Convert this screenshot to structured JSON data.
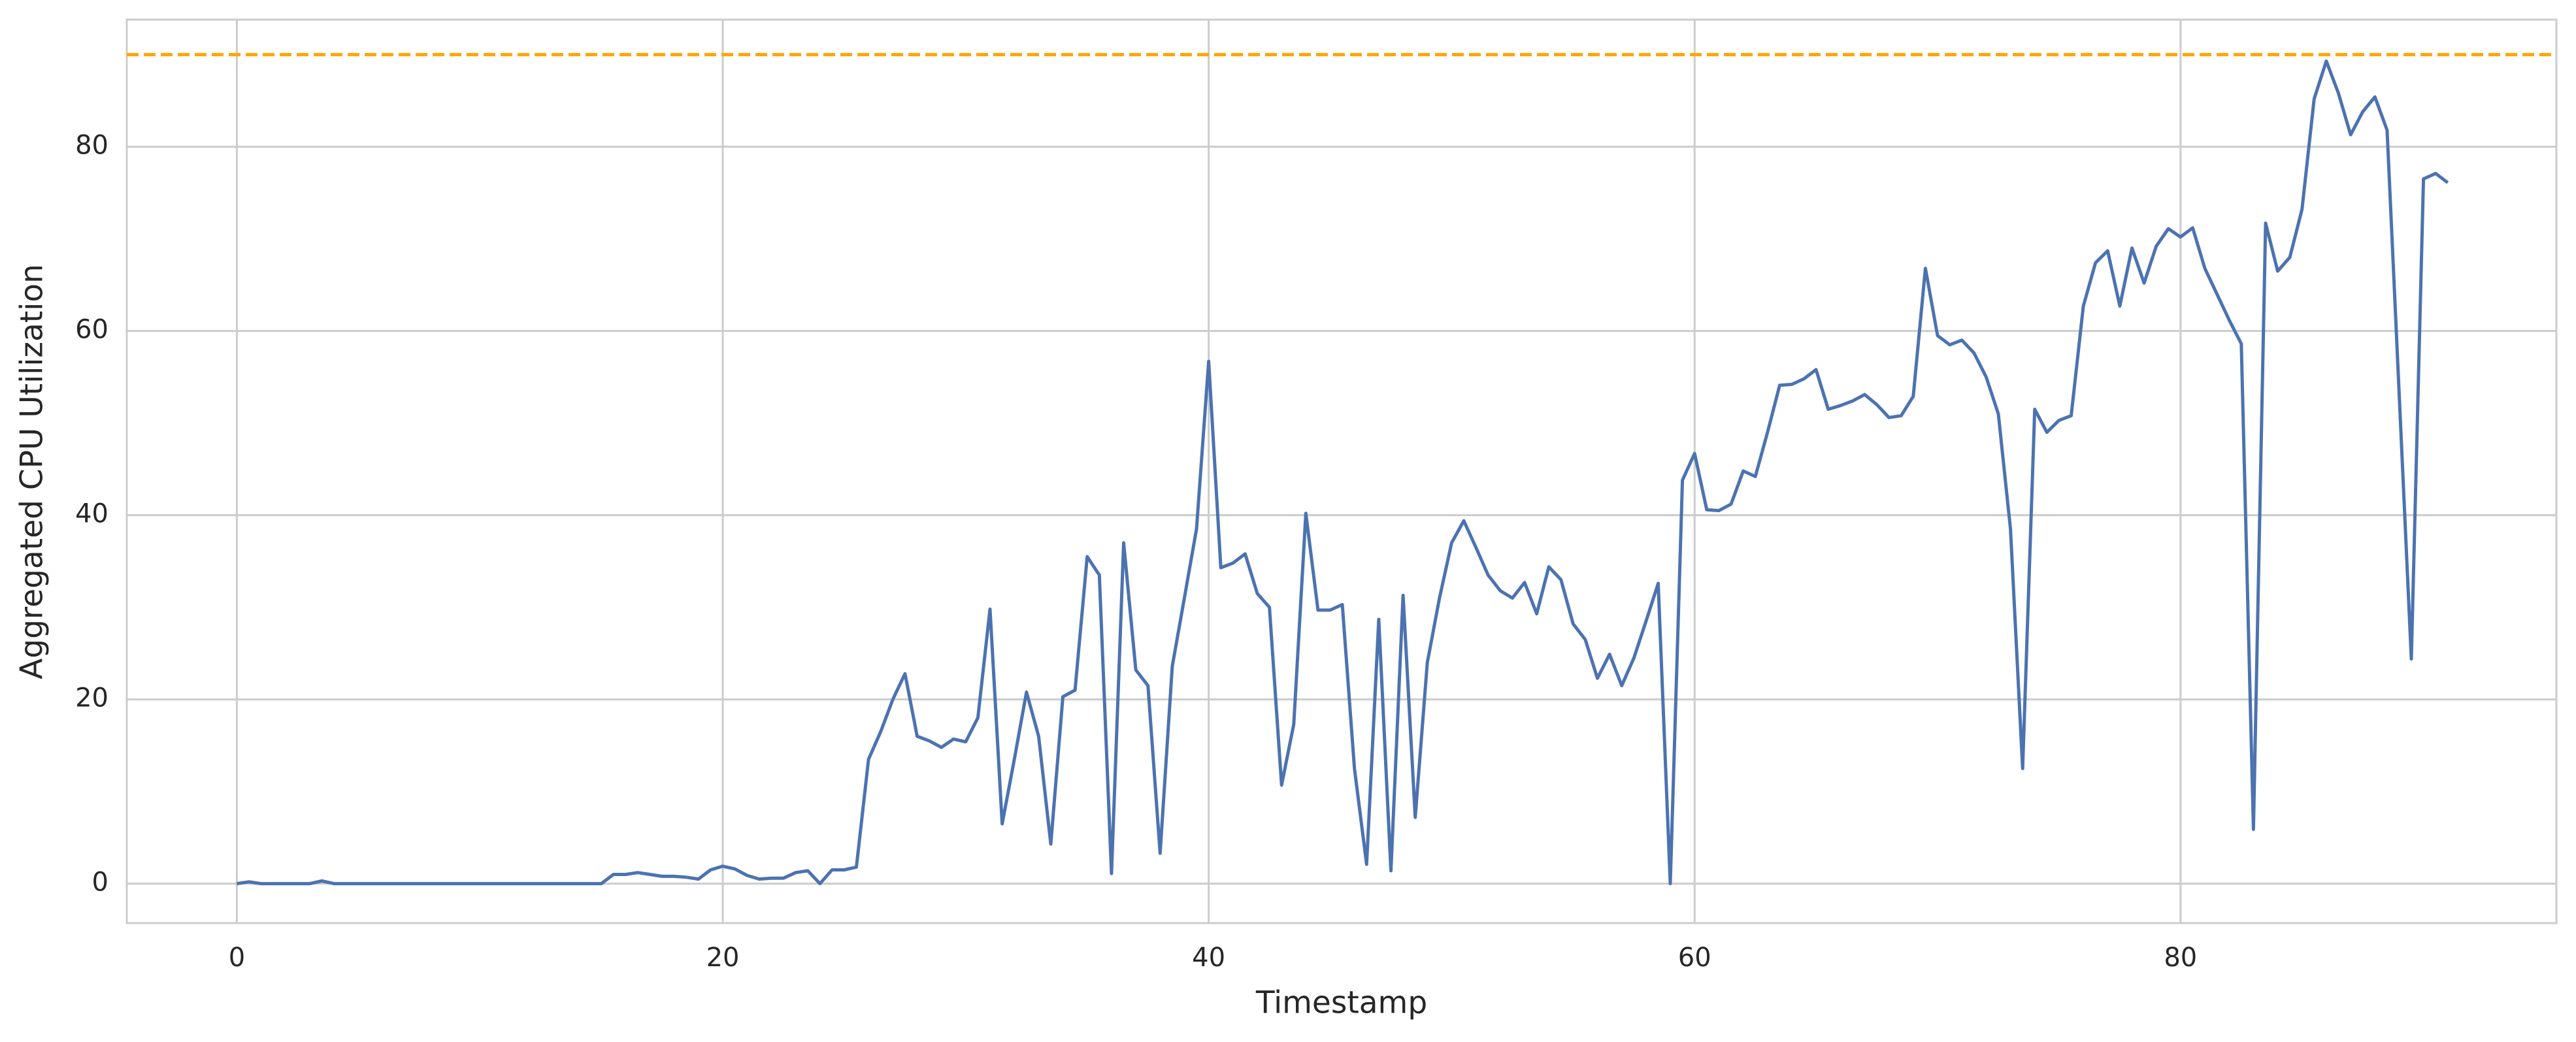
{
  "chart_data": {
    "type": "line",
    "x_label": "Timestamp",
    "y_label": "Aggregated CPU Utilization",
    "x": [
      0,
      0.5,
      1,
      1.5,
      2,
      2.5,
      3,
      3.5,
      4,
      4.5,
      5,
      5.5,
      6,
      6.5,
      7,
      7.5,
      8,
      8.5,
      9,
      9.5,
      10,
      10.5,
      11,
      11.5,
      12,
      12.5,
      13,
      13.5,
      14,
      14.5,
      15,
      15.5,
      16,
      16.5,
      17,
      17.5,
      18,
      18.5,
      19,
      19.5,
      20,
      20.5,
      21,
      21.5,
      22,
      22.5,
      23,
      23.5,
      24,
      24.5,
      25,
      25.5,
      26,
      26.5,
      27,
      27.5,
      28,
      28.5,
      29,
      29.5,
      30,
      30.5,
      31,
      31.5,
      32,
      32.5,
      33,
      33.5,
      34,
      34.5,
      35,
      35.5,
      36,
      36.5,
      37,
      37.5,
      38,
      38.5,
      39,
      39.5,
      40,
      40.5,
      41,
      41.5,
      42,
      42.5,
      43,
      43.5,
      44,
      44.5,
      45,
      45.5,
      46,
      46.5,
      47,
      47.5,
      48,
      48.5,
      49,
      49.5,
      50,
      50.5,
      51,
      51.5,
      52,
      52.5,
      53,
      53.5,
      54,
      54.5,
      55,
      55.5,
      56,
      56.5,
      57,
      57.5,
      58,
      58.5,
      59,
      59.5,
      60,
      60.5,
      61,
      61.5,
      62,
      62.5,
      63,
      63.5,
      64,
      64.5,
      65,
      65.5,
      66,
      66.5,
      67,
      67.5,
      68,
      68.5,
      69,
      69.5,
      70,
      70.5,
      71,
      71.5,
      72,
      72.5,
      73,
      73.5,
      74,
      74.5,
      75,
      75.5,
      76,
      76.5,
      77,
      77.5,
      78,
      78.5,
      79,
      79.5,
      80,
      80.5,
      81,
      81.5,
      82,
      82.5,
      83,
      83.5,
      84,
      84.5,
      85,
      85.5,
      86,
      86.5,
      87,
      87.5,
      88,
      88.5,
      89.5,
      90,
      90.5,
      91
    ],
    "values": [
      0,
      0.2,
      0,
      0,
      0,
      0,
      0,
      0.3,
      0,
      0,
      0,
      0,
      0,
      0,
      0,
      0,
      0,
      0,
      0,
      0,
      0,
      0,
      0,
      0,
      0,
      0,
      0,
      0,
      0,
      0,
      0,
      1.0,
      1.0,
      1.2,
      1.0,
      0.8,
      0.8,
      0.7,
      0.5,
      1.5,
      1.9,
      1.6,
      0.9,
      0.5,
      0.6,
      0.6,
      1.2,
      1.4,
      0,
      1.5,
      1.5,
      1.8,
      13.5,
      16.5,
      20,
      22.8,
      16,
      15.5,
      14.8,
      15.7,
      15.4,
      18,
      29.8,
      6.5,
      13.5,
      20.8,
      16,
      4.3,
      20.3,
      21,
      35.5,
      33.5,
      1.1,
      37,
      23.2,
      21.5,
      3.3,
      23.6,
      31,
      38.5,
      56.7,
      34.3,
      34.8,
      35.8,
      31.5,
      30,
      10.7,
      17.3,
      40.2,
      29.7,
      29.7,
      30.3,
      12.5,
      2.1,
      28.7,
      1.4,
      31.3,
      7.2,
      24,
      31,
      37,
      39.4,
      36.5,
      33.5,
      31.8,
      31,
      32.7,
      29.3,
      34.4,
      33,
      28.2,
      26.5,
      22.3,
      24.9,
      21.5,
      24.5,
      28.5,
      32.6,
      0,
      43.8,
      46.7,
      40.6,
      40.5,
      41.2,
      44.8,
      44.2,
      49,
      54.1,
      54.2,
      54.8,
      55.8,
      51.5,
      51.9,
      52.4,
      53.1,
      52,
      50.6,
      50.8,
      52.9,
      66.8,
      59.5,
      58.5,
      59,
      57.6,
      55,
      51,
      38.5,
      12.5,
      51.5,
      49,
      50.3,
      50.8,
      62.7,
      67.4,
      68.7,
      62.7,
      69,
      65.2,
      69.2,
      71.1,
      70.2,
      71.2,
      66.8,
      64,
      61.2,
      58.6,
      5.9,
      71.7,
      66.5,
      68,
      73.2,
      85.2,
      89.3,
      85.8,
      81.3,
      83.8,
      85.4,
      81.8,
      24.4,
      76.5,
      77.1,
      76.1
    ],
    "color": "#4c72b0",
    "hline": {
      "value": 90,
      "color": "#ffa500"
    },
    "xlim": [
      -4.53,
      95.47
    ],
    "xticks": [
      0,
      20,
      40,
      60,
      80
    ],
    "ylim": [
      -4.28,
      93.8
    ],
    "yticks": [
      0,
      20,
      40,
      60,
      80
    ],
    "grid": true
  }
}
